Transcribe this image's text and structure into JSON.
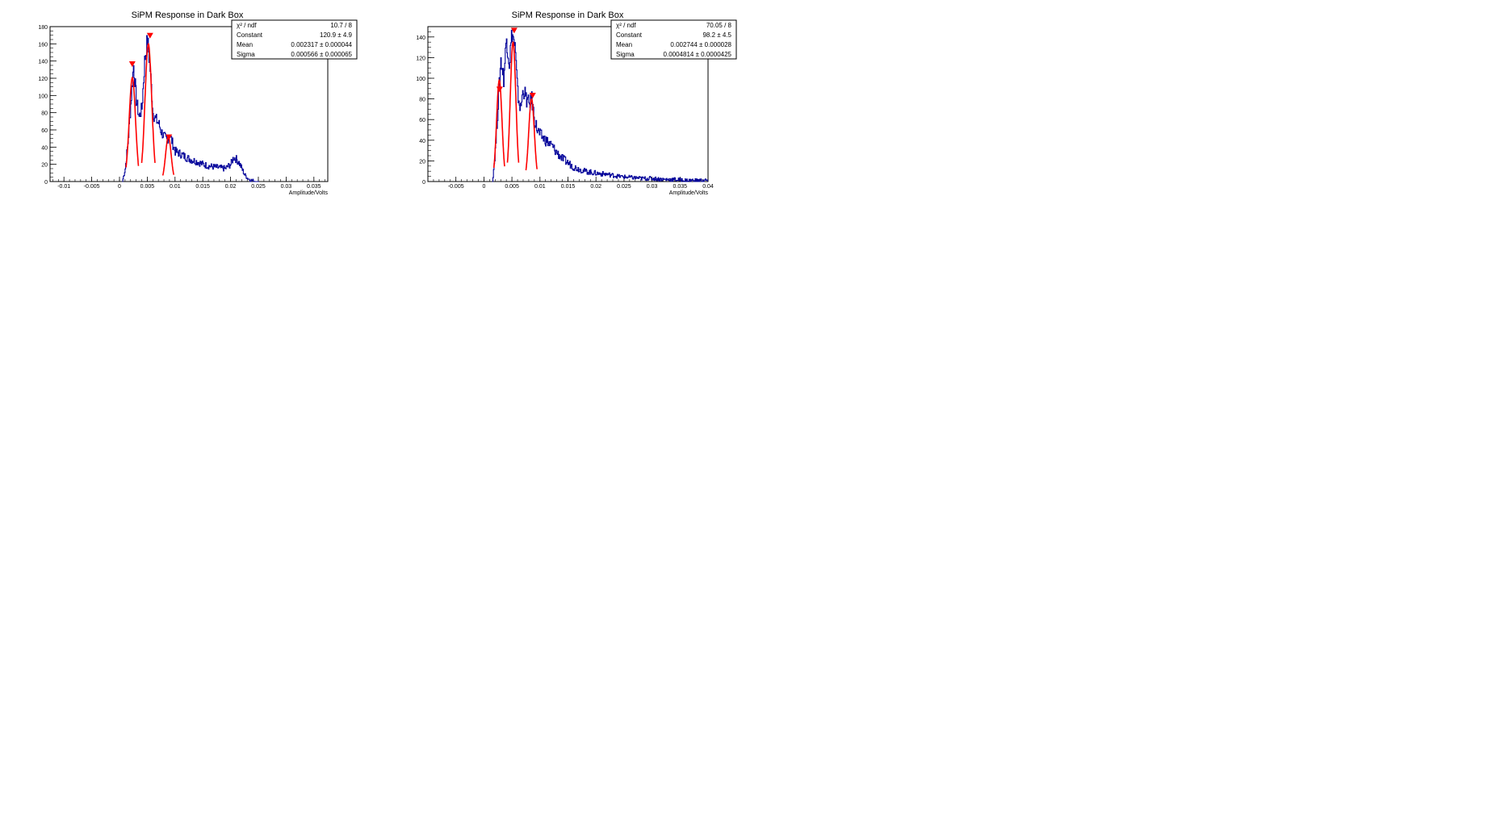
{
  "chart_data": [
    {
      "type": "line",
      "title": "SiPM Response in Dark Box",
      "xlabel": "Amplitude/Volts",
      "ylabel": "",
      "xlim": [
        -0.0125,
        0.0375
      ],
      "ylim": [
        0,
        180
      ],
      "x_ticks": [
        -0.01,
        -0.005,
        0,
        0.005,
        0.01,
        0.015,
        0.02,
        0.025,
        0.03,
        0.035
      ],
      "x_tick_labels": [
        "-0.01",
        "-0.005",
        "0",
        "0.005",
        "0.01",
        "0.015",
        "0.02",
        "0.025",
        "0.03",
        "0.035"
      ],
      "y_ticks": [
        0,
        20,
        40,
        60,
        80,
        100,
        120,
        140,
        160,
        180
      ],
      "y_tick_labels": [
        "0",
        "20",
        "40",
        "60",
        "80",
        "100",
        "120",
        "140",
        "160",
        "180"
      ],
      "grid": false,
      "legend": "none",
      "hist_color": "#000099",
      "fit_color": "#ff0000",
      "stats": {
        "rows": [
          {
            "label": "χ² / ndf",
            "value": "10.7 / 8"
          },
          {
            "label": "Constant",
            "value": "120.9 ± 4.9"
          },
          {
            "label": "Mean",
            "value": "0.002317 ± 0.000044"
          },
          {
            "label": "Sigma",
            "value": "0.000566 ± 0.000065"
          }
        ]
      },
      "histogram": {
        "x": [
          0.0005,
          0.001,
          0.0015,
          0.002,
          0.0025,
          0.003,
          0.0035,
          0.004,
          0.0045,
          0.005,
          0.0055,
          0.006,
          0.0065,
          0.007,
          0.0075,
          0.008,
          0.0085,
          0.009,
          0.0095,
          0.01,
          0.011,
          0.012,
          0.013,
          0.014,
          0.015,
          0.016,
          0.017,
          0.018,
          0.019,
          0.02,
          0.0205,
          0.021,
          0.0215,
          0.022,
          0.0225,
          0.023,
          0.0235,
          0.024,
          0.0245,
          0.025
        ],
        "y": [
          0,
          15,
          45,
          90,
          135,
          95,
          75,
          85,
          140,
          165,
          130,
          80,
          72,
          68,
          58,
          52,
          48,
          55,
          45,
          35,
          32,
          28,
          25,
          23,
          20,
          18,
          17,
          16,
          15,
          20,
          28,
          26,
          22,
          15,
          8,
          4,
          2,
          1,
          0,
          0
        ]
      },
      "fits": [
        {
          "mean": 0.002317,
          "sigma": 0.000566,
          "constant": 120.9
        },
        {
          "mean": 0.0052,
          "sigma": 0.0006,
          "constant": 160
        },
        {
          "mean": 0.0088,
          "sigma": 0.0005,
          "constant": 52
        }
      ],
      "peak_markers": [
        {
          "x": 0.0023,
          "y": 135
        },
        {
          "x": 0.0055,
          "y": 168
        },
        {
          "x": 0.0089,
          "y": 50
        }
      ]
    },
    {
      "type": "line",
      "title": "SiPM Response in Dark Box",
      "xlabel": "Amplitude/Volts",
      "ylabel": "",
      "xlim": [
        -0.01,
        0.04
      ],
      "ylim": [
        0,
        150
      ],
      "x_ticks": [
        -0.005,
        0,
        0.005,
        0.01,
        0.015,
        0.02,
        0.025,
        0.03,
        0.035,
        0.04
      ],
      "x_tick_labels": [
        "-0.005",
        "0",
        "0.005",
        "0.01",
        "0.015",
        "0.02",
        "0.025",
        "0.03",
        "0.035",
        "0.04"
      ],
      "y_ticks": [
        0,
        20,
        40,
        60,
        80,
        100,
        120,
        140
      ],
      "y_tick_labels": [
        "0",
        "20",
        "40",
        "60",
        "80",
        "100",
        "120",
        "140"
      ],
      "grid": false,
      "legend": "none",
      "hist_color": "#000099",
      "fit_color": "#ff0000",
      "stats": {
        "rows": [
          {
            "label": "χ² / ndf",
            "value": "70.05 / 8"
          },
          {
            "label": "Constant",
            "value": "98.2 ± 4.5"
          },
          {
            "label": "Mean",
            "value": "0.002744 ± 0.000028"
          },
          {
            "label": "Sigma",
            "value": "0.0004814 ± 0.0000425"
          }
        ]
      },
      "histogram": {
        "x": [
          0.0015,
          0.002,
          0.0025,
          0.003,
          0.0035,
          0.004,
          0.0045,
          0.005,
          0.0055,
          0.006,
          0.0065,
          0.007,
          0.0075,
          0.008,
          0.0085,
          0.009,
          0.0095,
          0.01,
          0.011,
          0.012,
          0.013,
          0.014,
          0.015,
          0.016,
          0.018,
          0.02,
          0.022,
          0.024,
          0.026,
          0.028,
          0.03,
          0.032,
          0.034,
          0.036,
          0.038,
          0.04
        ],
        "y": [
          0,
          30,
          75,
          118,
          100,
          140,
          115,
          145,
          130,
          85,
          70,
          90,
          80,
          75,
          80,
          60,
          50,
          45,
          40,
          35,
          28,
          22,
          18,
          14,
          10,
          8,
          7,
          5,
          4,
          3,
          3,
          2,
          2,
          1,
          1,
          1
        ]
      },
      "fits": [
        {
          "mean": 0.002744,
          "sigma": 0.0004814,
          "constant": 98.2
        },
        {
          "mean": 0.0052,
          "sigma": 0.0005,
          "constant": 135
        },
        {
          "mean": 0.0085,
          "sigma": 0.0005,
          "constant": 80
        }
      ],
      "peak_markers": [
        {
          "x": 0.0028,
          "y": 88
        },
        {
          "x": 0.0054,
          "y": 145
        },
        {
          "x": 0.0087,
          "y": 82
        }
      ]
    }
  ]
}
